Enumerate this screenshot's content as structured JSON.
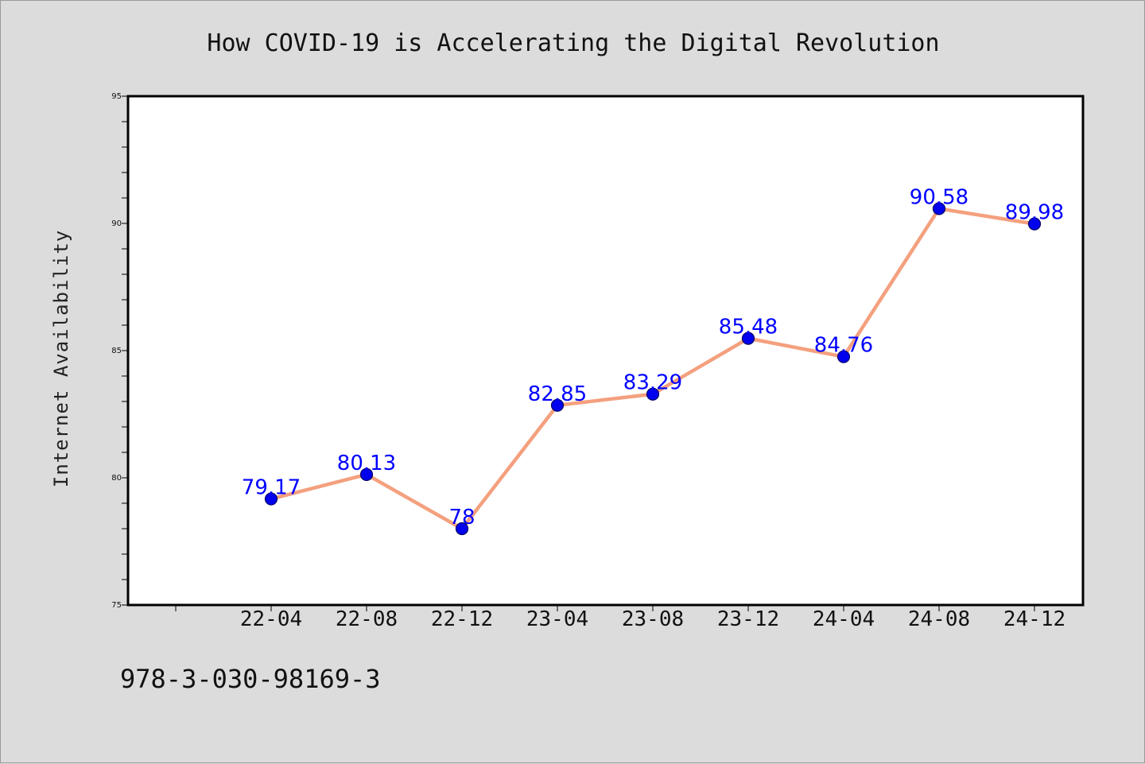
{
  "chart_data": {
    "type": "line",
    "title": "How COVID-19 is Accelerating the Digital Revolution",
    "xlabel": "",
    "ylabel": "Internet Availability",
    "categories": [
      "22-04",
      "22-08",
      "22-12",
      "23-04",
      "23-08",
      "23-12",
      "24-04",
      "24-08",
      "24-12"
    ],
    "series": [
      {
        "values": [
          79.17,
          80.13,
          78,
          82.85,
          83.29,
          85.48,
          84.76,
          90.58,
          89.98
        ],
        "data_labels": [
          "79.17",
          "80.13",
          "78",
          "82.85",
          "83.29",
          "85.48",
          "84.76",
          "90.58",
          "89.98"
        ]
      }
    ],
    "ylim": [
      75,
      95
    ],
    "yticks": [
      "75",
      "80",
      "85",
      "90",
      "95"
    ],
    "grid": false,
    "legend": "none",
    "colors": {
      "line": "#f4a07e",
      "marker": "#0000ee",
      "marker_edge": "#000066",
      "data_label": "#0000ff",
      "plot_background": "#ffffff",
      "figure_background": "#dcdcdc"
    }
  },
  "footer": {
    "isbn": "978-3-030-98169-3"
  }
}
